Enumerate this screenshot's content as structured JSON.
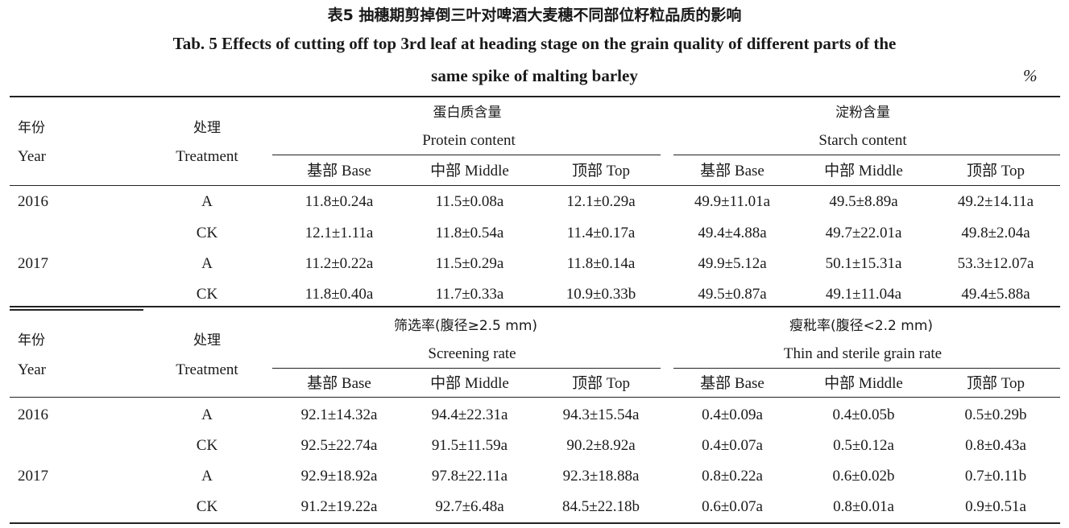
{
  "caption": {
    "cn": "表5 抽穗期剪掉倒三叶对啤酒大麦穗不同部位籽粒品质的影响",
    "en_line1": "Tab. 5 Effects of cutting off top 3rd leaf at heading stage on the grain quality of different parts of the",
    "en_line2": "same spike of malting barley",
    "unit": "%"
  },
  "headers": {
    "year_cn": "年份",
    "year_en": "Year",
    "treatment_cn": "处理",
    "treatment_en": "Treatment",
    "base": "基部 Base",
    "middle": "中部 Middle",
    "top": "顶部 Top"
  },
  "sections": [
    {
      "group1_cn": "蛋白质含量",
      "group1_en": "Protein content",
      "group2_cn": "淀粉含量",
      "group2_en": "Starch content",
      "rows": [
        {
          "year": "2016",
          "treatment": "A",
          "cells": [
            "11.8±0.24a",
            "11.5±0.08a",
            "12.1±0.29a",
            "49.9±11.01a",
            "49.5±8.89a",
            "49.2±14.11a"
          ]
        },
        {
          "year": "",
          "treatment": "CK",
          "cells": [
            "12.1±1.11a",
            "11.8±0.54a",
            "11.4±0.17a",
            "49.4±4.88a",
            "49.7±22.01a",
            "49.8±2.04a"
          ]
        },
        {
          "year": "2017",
          "treatment": "A",
          "cells": [
            "11.2±0.22a",
            "11.5±0.29a",
            "11.8±0.14a",
            "49.9±5.12a",
            "50.1±15.31a",
            "53.3±12.07a"
          ]
        },
        {
          "year": "",
          "treatment": "CK",
          "cells": [
            "11.8±0.40a",
            "11.7±0.33a",
            "10.9±0.33b",
            "49.5±0.87a",
            "49.1±11.04a",
            "49.4±5.88a"
          ]
        }
      ]
    },
    {
      "group1_cn": "筛选率(腹径≥2.5 mm)",
      "group1_en": "Screening rate",
      "group2_cn": "瘦秕率(腹径<2.2 mm)",
      "group2_en": "Thin and sterile grain rate",
      "rows": [
        {
          "year": "2016",
          "treatment": "A",
          "cells": [
            "92.1±14.32a",
            "94.4±22.31a",
            "94.3±15.54a",
            "0.4±0.09a",
            "0.4±0.05b",
            "0.5±0.29b"
          ]
        },
        {
          "year": "",
          "treatment": "CK",
          "cells": [
            "92.5±22.74a",
            "91.5±11.59a",
            "90.2±8.92a",
            "0.4±0.07a",
            "0.5±0.12a",
            "0.8±0.43a"
          ]
        },
        {
          "year": "2017",
          "treatment": "A",
          "cells": [
            "92.9±18.92a",
            "97.8±22.11a",
            "92.3±18.88a",
            "0.8±0.22a",
            "0.6±0.02b",
            "0.7±0.11b"
          ]
        },
        {
          "year": "",
          "treatment": "CK",
          "cells": [
            "91.2±19.22a",
            "92.7±6.48a",
            "84.5±22.18b",
            "0.6±0.07a",
            "0.8±0.01a",
            "0.9±0.51a"
          ]
        }
      ]
    }
  ]
}
